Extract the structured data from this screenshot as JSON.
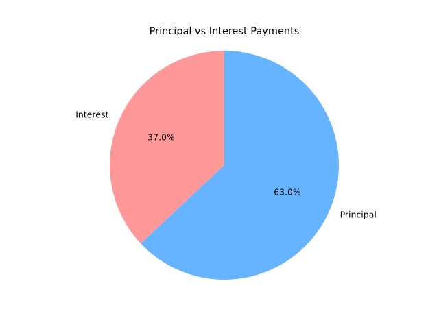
{
  "chart_data": {
    "type": "pie",
    "title": "Principal vs Interest Payments",
    "slices": [
      {
        "label": "Interest",
        "value": 37.0,
        "pct_label": "37.0%",
        "color": "#ff9999"
      },
      {
        "label": "Principal",
        "value": 63.0,
        "pct_label": "63.0%",
        "color": "#66b3ff"
      }
    ],
    "start_angle": 90,
    "direction": "counterclockwise",
    "legend": "none"
  }
}
